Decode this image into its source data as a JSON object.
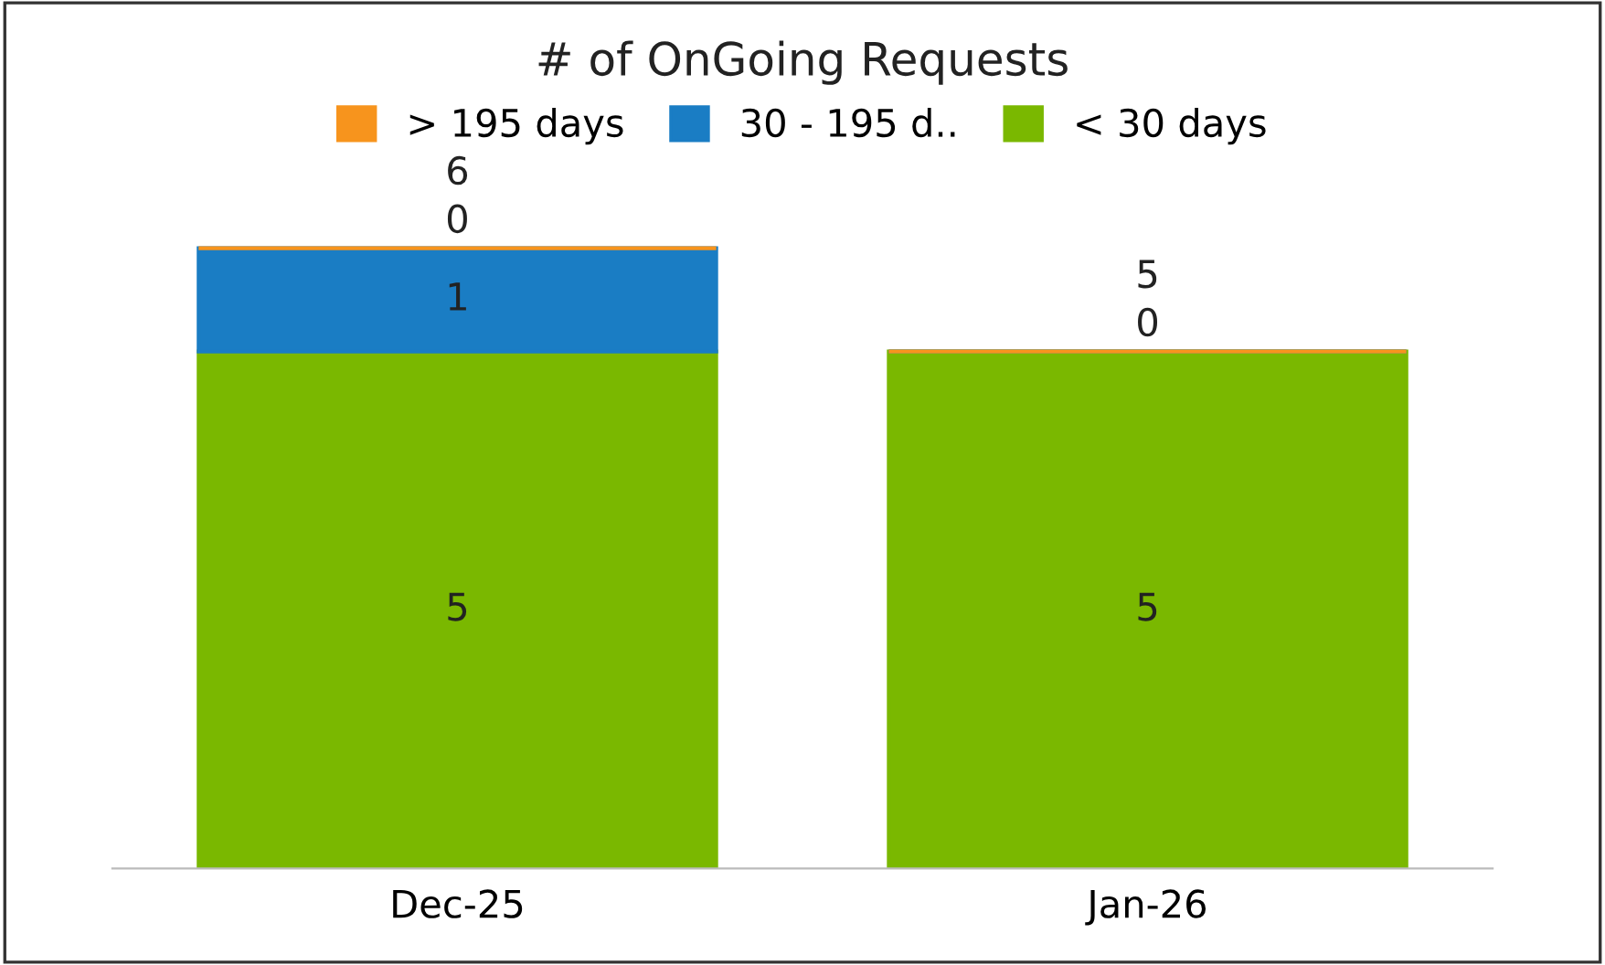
{
  "chart_data": {
    "type": "bar",
    "title": "# of OnGoing Requests",
    "categories": [
      "Dec-25",
      "Jan-26"
    ],
    "stacked": true,
    "totals": [
      "6",
      "5"
    ],
    "legend": "top",
    "series": [
      {
        "name": "< 30 days",
        "color": "#7ab800",
        "values": [
          5,
          5
        ],
        "value_labels": [
          "5",
          "5"
        ]
      },
      {
        "name": "30 - 195 d..",
        "color": "#1a7dc4",
        "values": [
          1,
          0
        ],
        "value_labels": [
          "1",
          "0"
        ]
      },
      {
        "name": "> 195 days",
        "color": "#f7941d",
        "values": [
          0,
          0
        ],
        "value_labels": [
          "0",
          null
        ]
      }
    ]
  }
}
